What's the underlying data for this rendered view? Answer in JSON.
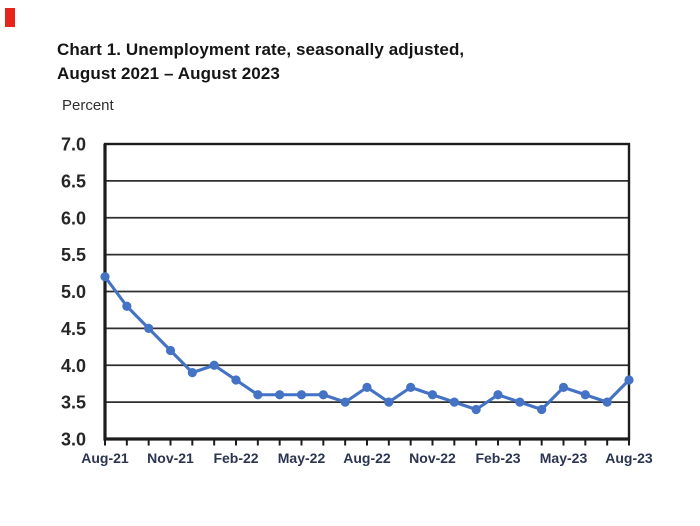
{
  "artifact": {
    "color": "#e8251c"
  },
  "title": {
    "line1": "Chart 1. Unemployment rate, seasonally adjusted,",
    "line2": "August 2021 – August 2023"
  },
  "y_axis_unit": "Percent",
  "chart_data": {
    "type": "line",
    "title": "Chart 1. Unemployment rate, seasonally adjusted, August 2021 – August 2023",
    "ylabel": "Percent",
    "xlabel": "",
    "ylim": [
      3.0,
      7.0
    ],
    "ytick_step": 0.5,
    "ytick_labels": [
      "3.0",
      "3.5",
      "4.0",
      "4.5",
      "5.0",
      "5.5",
      "6.0",
      "6.5",
      "7.0"
    ],
    "categories": [
      "Aug-21",
      "Sep-21",
      "Oct-21",
      "Nov-21",
      "Dec-21",
      "Jan-22",
      "Feb-22",
      "Mar-22",
      "Apr-22",
      "May-22",
      "Jun-22",
      "Jul-22",
      "Aug-22",
      "Sep-22",
      "Oct-22",
      "Nov-22",
      "Dec-22",
      "Jan-23",
      "Feb-23",
      "Mar-23",
      "Apr-23",
      "May-23",
      "Jun-23",
      "Jul-23",
      "Aug-23"
    ],
    "values": [
      5.2,
      4.8,
      4.5,
      4.2,
      3.9,
      4.0,
      3.8,
      3.6,
      3.6,
      3.6,
      3.6,
      3.5,
      3.7,
      3.5,
      3.7,
      3.6,
      3.5,
      3.4,
      3.6,
      3.5,
      3.4,
      3.7,
      3.6,
      3.5,
      3.8
    ],
    "xtick_labels": [
      "Aug-21",
      "Nov-21",
      "Feb-22",
      "May-22",
      "Aug-22",
      "Nov-22",
      "Feb-23",
      "May-23",
      "Aug-23"
    ],
    "xtick_every": 3,
    "grid": true,
    "legend": "none",
    "line_color": "#4472c4",
    "marker": "circle",
    "grid_color": "#2f2f2f",
    "axis_color": "#1c1c1c",
    "ytick_label_color": "#262626",
    "xtick_label_color": "#2b3550"
  }
}
